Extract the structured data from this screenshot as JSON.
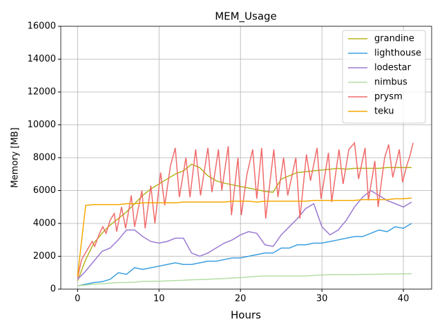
{
  "chart_data": {
    "type": "line",
    "title": "MEM_Usage",
    "x_label": "Hours",
    "y_label": "Memory [MB]",
    "xlim": [
      -2.06,
      43.47
    ],
    "ylim": [
      0,
      16000
    ],
    "xticks": [
      0,
      10,
      20,
      30,
      40
    ],
    "yticks": [
      0,
      2000,
      4000,
      6000,
      8000,
      10000,
      12000,
      14000,
      16000
    ],
    "grid": true,
    "legend": "upper right",
    "x": [
      0,
      1,
      2,
      3,
      4,
      5,
      6,
      7,
      8,
      9,
      10,
      11,
      12,
      13,
      14,
      15,
      16,
      17,
      18,
      19,
      20,
      21,
      22,
      23,
      24,
      25,
      26,
      27,
      28,
      29,
      30,
      31,
      32,
      33,
      34,
      35,
      36,
      37,
      38,
      39,
      40,
      41
    ],
    "series": [
      {
        "name": "grandine",
        "color": "#b5b31a",
        "values": [
          500,
          1800,
          2800,
          3400,
          3900,
          4300,
          4700,
          5200,
          5700,
          6100,
          6400,
          6700,
          7000,
          7200,
          7600,
          7400,
          6900,
          6600,
          6450,
          6350,
          6250,
          6150,
          6050,
          5950,
          5900,
          6700,
          6900,
          7100,
          7150,
          7200,
          7250,
          7300,
          7350,
          7300,
          7350,
          7350,
          7350,
          7350,
          7400,
          7400,
          7400,
          7400
        ]
      },
      {
        "name": "lighthouse",
        "color": "#3b9ee0",
        "values": [
          200,
          300,
          400,
          450,
          600,
          1000,
          900,
          1300,
          1200,
          1300,
          1400,
          1500,
          1600,
          1500,
          1500,
          1600,
          1700,
          1700,
          1800,
          1900,
          1900,
          2000,
          2100,
          2200,
          2200,
          2500,
          2500,
          2700,
          2700,
          2800,
          2800,
          2900,
          3000,
          3100,
          3200,
          3200,
          3400,
          3600,
          3500,
          3800,
          3700,
          4000
        ]
      },
      {
        "name": "lodestar",
        "color": "#9b79d2",
        "values": [
          600,
          1100,
          1700,
          2300,
          2500,
          3000,
          3600,
          3600,
          3200,
          2900,
          2800,
          2900,
          3100,
          3100,
          2200,
          2000,
          2200,
          2500,
          2800,
          3000,
          3300,
          3500,
          3400,
          2700,
          2600,
          3300,
          3800,
          4300,
          4900,
          5200,
          3800,
          3300,
          3600,
          4200,
          5000,
          5600,
          6000,
          5700,
          5400,
          5200,
          5000,
          5300
        ]
      },
      {
        "name": "nimbus",
        "color": "#b3dea3",
        "values": [
          200,
          250,
          300,
          330,
          360,
          400,
          400,
          420,
          470,
          480,
          480,
          500,
          520,
          540,
          570,
          580,
          600,
          620,
          640,
          680,
          700,
          740,
          780,
          800,
          800,
          800,
          800,
          800,
          800,
          830,
          860,
          880,
          880,
          880,
          880,
          900,
          900,
          910,
          920,
          920,
          930,
          940
        ]
      },
      {
        "name": "prysm",
        "color": "#f06a6a",
        "x": [
          0,
          0.5,
          1.2,
          1.8,
          2.1,
          2.7,
          3.1,
          3.5,
          4,
          4.5,
          4.8,
          5.4,
          5.9,
          6.6,
          7,
          7.9,
          8.3,
          9,
          9.5,
          10.2,
          10.7,
          11.4,
          12,
          12.5,
          13.3,
          13.8,
          14.5,
          15.1,
          16,
          16.5,
          17.3,
          17.7,
          18.5,
          18.9,
          19.7,
          20.1,
          20.8,
          21.5,
          22,
          22.6,
          23.1,
          24.1,
          24.6,
          25.3,
          25.8,
          26.8,
          27.3,
          28.1,
          28.6,
          29.4,
          29.9,
          30.8,
          31.2,
          32.1,
          32.6,
          33.3,
          34,
          34.5,
          35.3,
          35.7,
          36.5,
          36.9,
          37.7,
          38.2,
          38.7,
          39.5,
          39.9,
          40.4,
          40.8,
          41.2
        ],
        "values": [
          700,
          1800,
          2400,
          2900,
          2600,
          3400,
          3800,
          3400,
          4200,
          4600,
          3500,
          5000,
          3700,
          5700,
          3800,
          6000,
          3700,
          6300,
          4000,
          7100,
          5100,
          7500,
          8600,
          5600,
          8000,
          5600,
          8500,
          5700,
          8600,
          5900,
          8500,
          6000,
          8700,
          4500,
          8000,
          4500,
          7000,
          8500,
          5500,
          8600,
          4300,
          8500,
          5600,
          8000,
          5700,
          8000,
          4300,
          8200,
          6600,
          8600,
          5500,
          8300,
          5300,
          8500,
          6400,
          8500,
          8900,
          6700,
          8600,
          5400,
          7800,
          5000,
          8000,
          8800,
          6800,
          8500,
          6500,
          7500,
          8100,
          8900
        ]
      },
      {
        "name": "teku",
        "color": "#f5a800",
        "values": [
          800,
          5100,
          5150,
          5150,
          5150,
          5150,
          5200,
          5200,
          5250,
          5250,
          5250,
          5250,
          5250,
          5300,
          5300,
          5300,
          5300,
          5300,
          5300,
          5350,
          5350,
          5350,
          5300,
          5350,
          5350,
          5350,
          5350,
          5350,
          5350,
          5400,
          5400,
          5400,
          5400,
          5400,
          5400,
          5450,
          5450,
          5450,
          5450,
          5500,
          5500,
          5550
        ]
      }
    ]
  }
}
